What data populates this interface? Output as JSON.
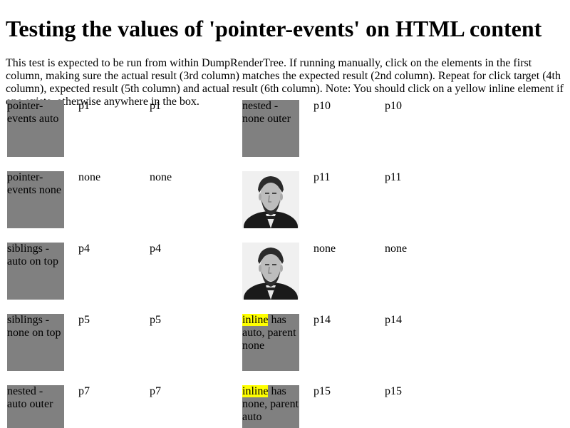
{
  "title": "Testing the values of 'pointer-events' on HTML content",
  "intro": "This test is expected to be run from within DumpRenderTree. If running manually, click on the elements in the first column, making sure the actual result (3rd column) matches the expected result (2nd column). Repeat for click target (4th column), expected result (5th column) and actual result (6th column). Note: You should click on a yellow inline element if one exists, otherwise anywhere in the box.",
  "left_rows": [
    {
      "label": "pointer-events auto",
      "expected": "p1",
      "actual": "p1"
    },
    {
      "label": "pointer-events none",
      "expected": "none",
      "actual": "none"
    },
    {
      "label": "siblings - auto on top",
      "expected": "p4",
      "actual": "p4"
    },
    {
      "label": "siblings - none on top",
      "expected": "p5",
      "actual": "p5"
    },
    {
      "label": "nested - auto outer",
      "expected": "p7",
      "actual": "p7"
    }
  ],
  "right_rows": [
    {
      "kind": "text",
      "label": "nested - none outer",
      "expected": "p10",
      "actual": "p10"
    },
    {
      "kind": "image",
      "image": "lincoln-portrait-photo",
      "expected": "p11",
      "actual": "p11"
    },
    {
      "kind": "image",
      "image": "lincoln-portrait-photo",
      "expected": "none",
      "actual": "none"
    },
    {
      "kind": "inline",
      "inline": "inline",
      "rest": " has auto, parent none",
      "expected": "p14",
      "actual": "p14"
    },
    {
      "kind": "inline",
      "inline": "inline",
      "rest": " has none, parent auto",
      "expected": "p15",
      "actual": "p15"
    }
  ],
  "colors": {
    "box": "#808080",
    "highlight": "#ffff00"
  }
}
